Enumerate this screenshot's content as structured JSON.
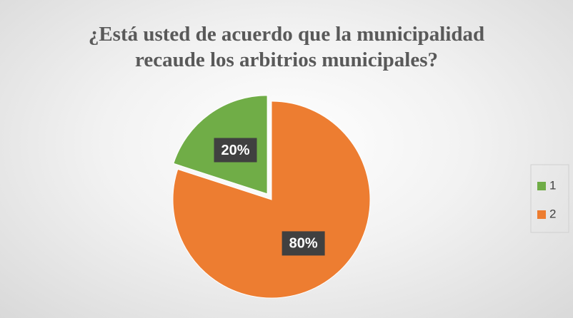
{
  "chart_data": {
    "type": "pie",
    "title": "¿Está usted de acuerdo que la municipalidad recaude los arbitrios municipales?",
    "categories": [
      "1",
      "2"
    ],
    "values": [
      20,
      80
    ],
    "value_labels": [
      "20%",
      "80%"
    ],
    "colors": [
      "#70ad47",
      "#ed7d31"
    ],
    "legend": "right"
  }
}
